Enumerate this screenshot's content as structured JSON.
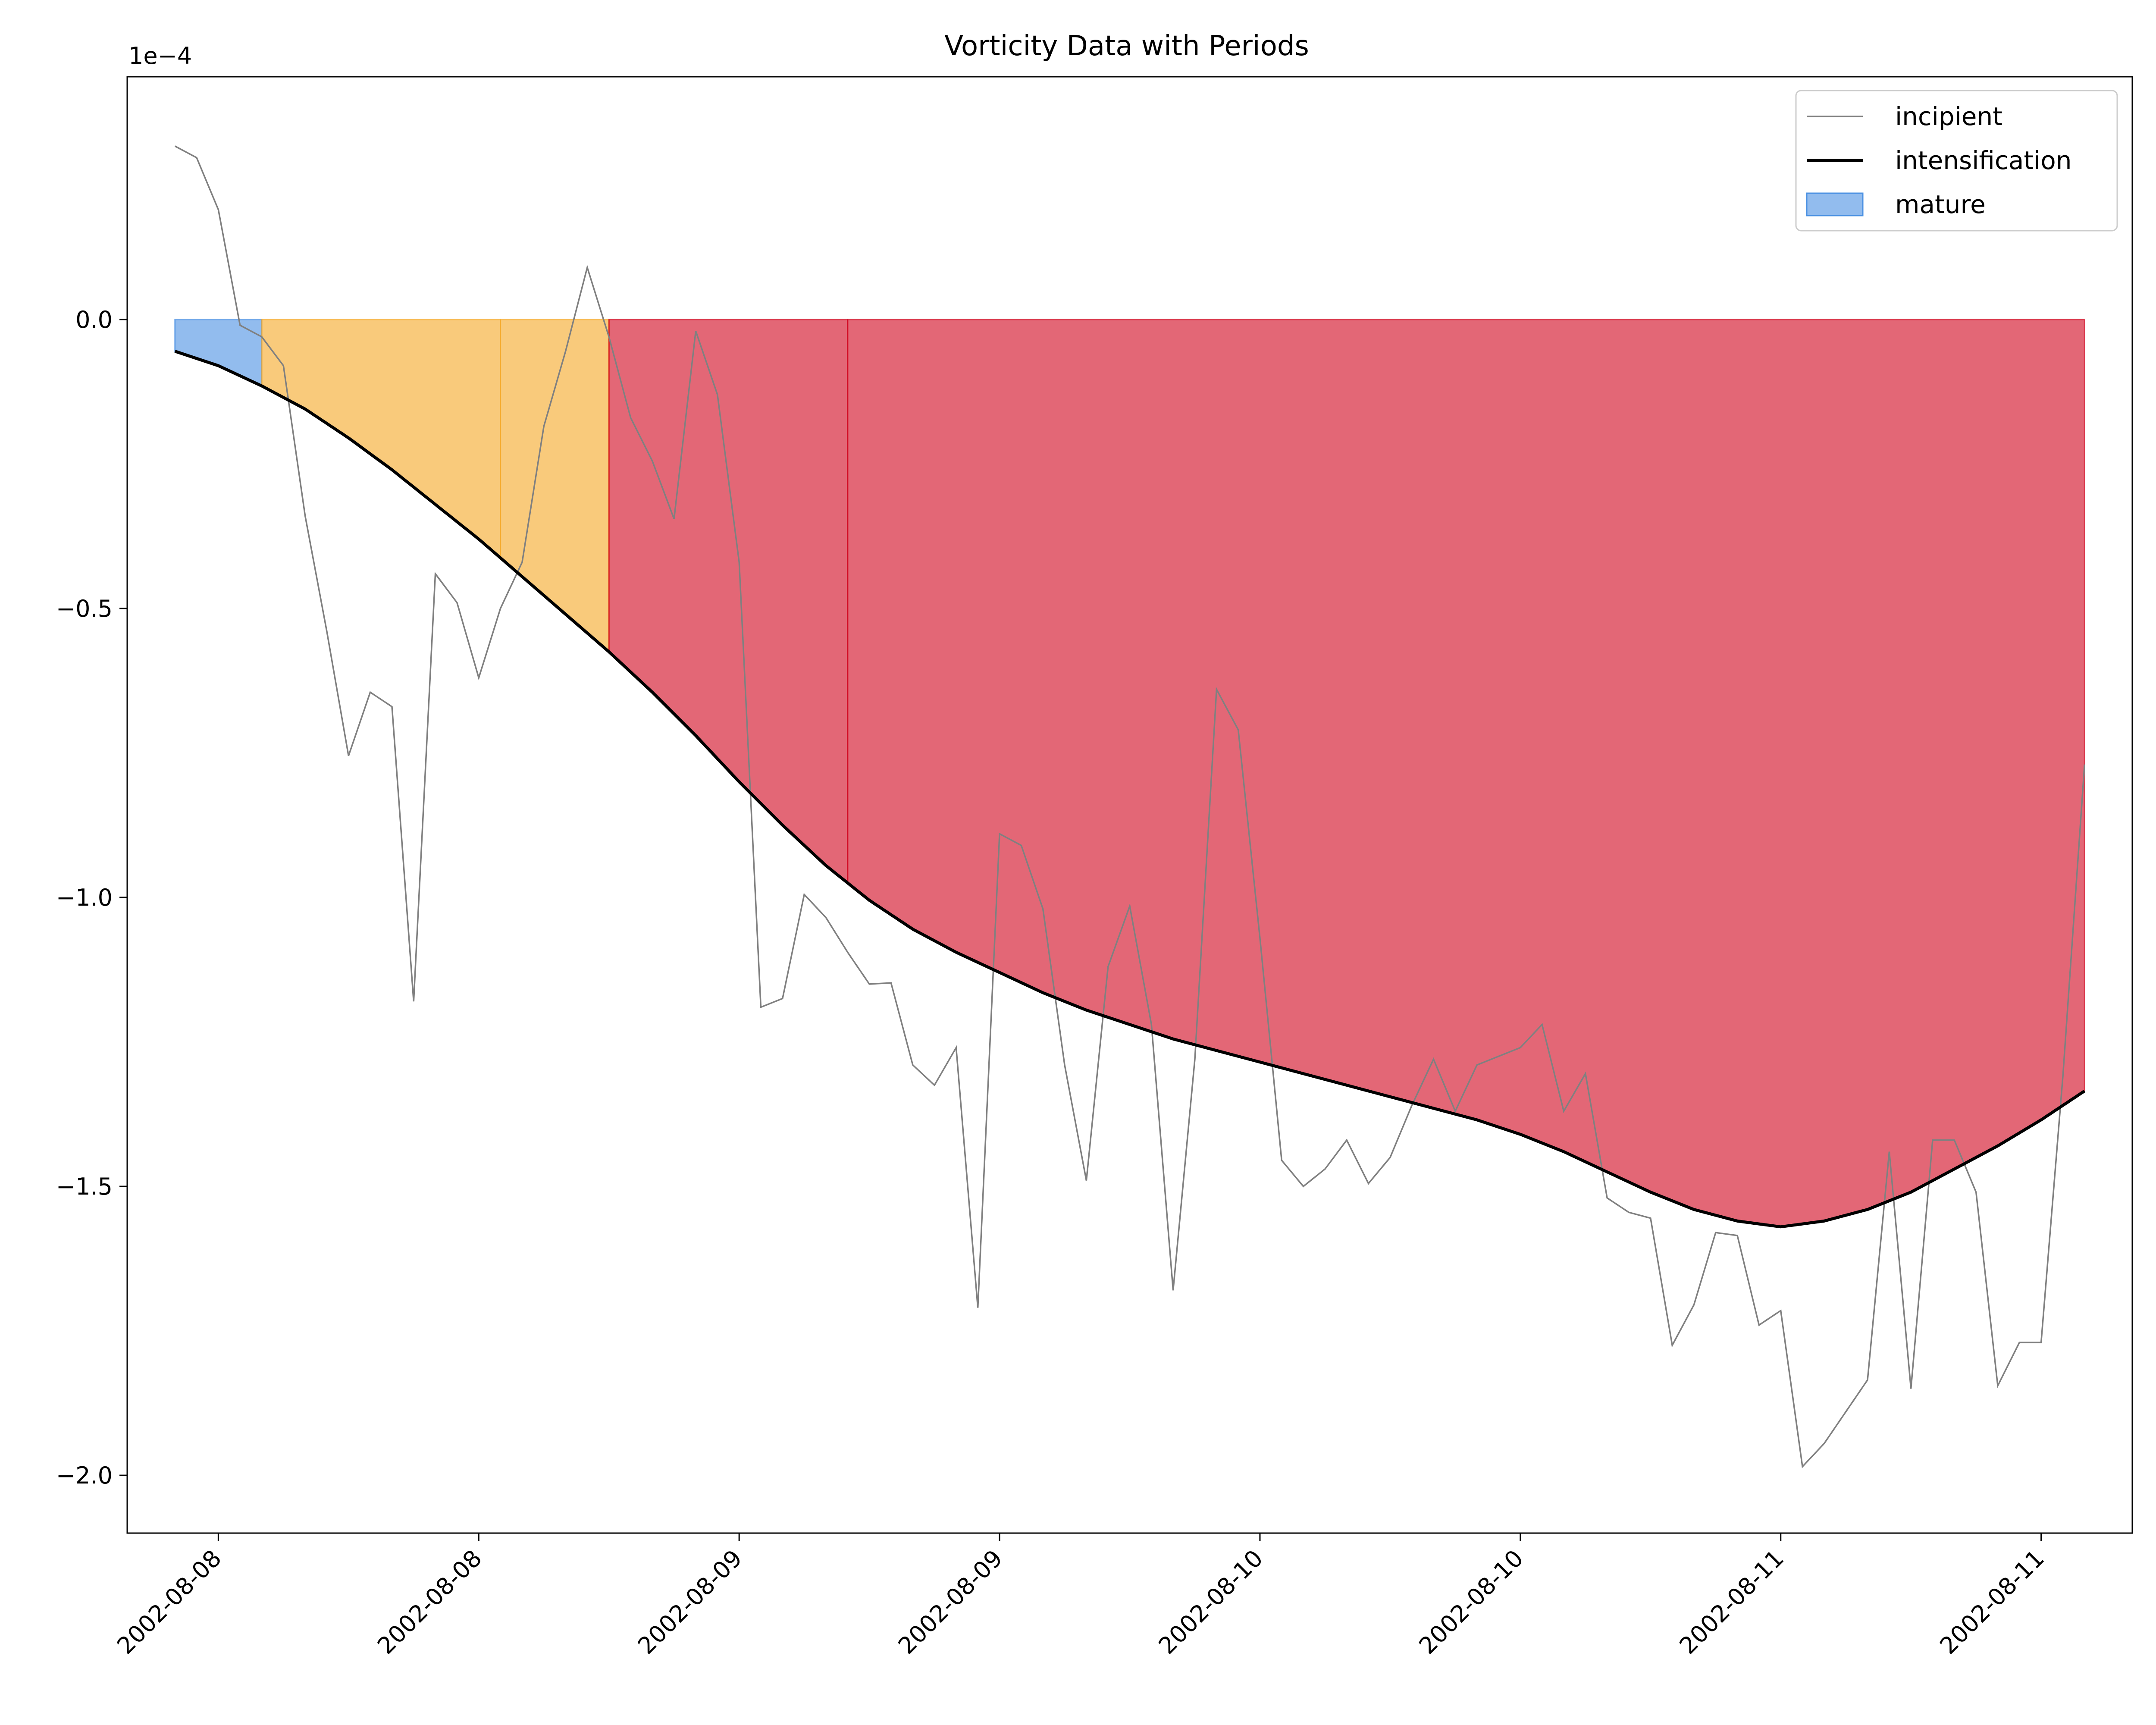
{
  "chart_data": {
    "type": "line",
    "title": "Vorticity Data with Periods",
    "xlabel": "",
    "ylabel": "",
    "offset_label": "1e−4",
    "xlim": [
      -2.2,
      90.2
    ],
    "ylim": [
      -2.1,
      0.42
    ],
    "x_ticks": [
      {
        "x": 2,
        "label": "2002-08-08"
      },
      {
        "x": 14,
        "label": "2002-08-08"
      },
      {
        "x": 26,
        "label": "2002-08-09"
      },
      {
        "x": 38,
        "label": "2002-08-09"
      },
      {
        "x": 50,
        "label": "2002-08-10"
      },
      {
        "x": 62,
        "label": "2002-08-10"
      },
      {
        "x": 74,
        "label": "2002-08-11"
      },
      {
        "x": 86,
        "label": "2002-08-11"
      }
    ],
    "y_ticks": [
      {
        "y": 0.0,
        "label": "0.0"
      },
      {
        "y": -0.5,
        "label": "−0.5"
      },
      {
        "y": -1.0,
        "label": "−1.0"
      },
      {
        "y": -1.5,
        "label": "−1.5"
      },
      {
        "y": -2.0,
        "label": "−2.0"
      }
    ],
    "legend_position": "top-right",
    "legend": [
      {
        "label": "incipient",
        "kind": "line-thin",
        "color": "#808080"
      },
      {
        "label": "intensification",
        "kind": "line-thick",
        "color": "#000000"
      },
      {
        "label": "mature",
        "kind": "patch",
        "color": "#4a90e2"
      }
    ],
    "periods": [
      {
        "x_start": 0,
        "x_end": 4,
        "color": "#4a90e2",
        "opacity": 0.6
      },
      {
        "x_start": 4,
        "x_end": 15,
        "color": "#f5a623",
        "opacity": 0.6
      },
      {
        "x_start": 15,
        "x_end": 20,
        "color": "#f5a623",
        "opacity": 0.6
      },
      {
        "x_start": 20,
        "x_end": 31,
        "color": "#d0021b",
        "opacity": 0.6
      },
      {
        "x_start": 31,
        "x_end": 88,
        "color": "#d0021b",
        "opacity": 0.6
      }
    ],
    "series": [
      {
        "name": "incipient",
        "color": "#808080",
        "x": [
          0,
          1,
          2,
          3,
          4,
          5,
          6,
          7,
          8,
          9,
          10,
          11,
          12,
          13,
          14,
          15,
          16,
          17,
          18,
          19,
          20,
          21,
          22,
          23,
          24,
          25,
          26,
          27,
          28,
          29,
          30,
          31,
          32,
          33,
          34,
          35,
          36,
          37,
          38,
          39,
          40,
          41,
          42,
          43,
          44,
          45,
          46,
          47,
          48,
          49,
          50,
          51,
          52,
          53,
          54,
          55,
          56,
          57,
          58,
          59,
          60,
          61,
          62,
          63,
          64,
          65,
          66,
          67,
          68,
          69,
          70,
          71,
          72,
          73,
          74,
          75,
          76,
          77,
          78,
          79,
          80,
          81,
          82,
          83,
          84,
          85,
          86,
          87,
          88
        ],
        "values": [
          0.3,
          0.28,
          0.19,
          -0.01,
          -0.03,
          -0.08,
          -0.34,
          -0.54,
          -0.755,
          -0.645,
          -0.67,
          -1.18,
          -0.44,
          -0.49,
          -0.62,
          -0.5,
          -0.42,
          -0.185,
          -0.055,
          0.09,
          -0.03,
          -0.17,
          -0.245,
          -0.345,
          -0.02,
          -0.13,
          -0.42,
          -1.19,
          -1.175,
          -0.995,
          -1.035,
          -1.095,
          -1.15,
          -1.148,
          -1.29,
          -1.325,
          -1.26,
          -1.71,
          -0.89,
          -0.91,
          -1.02,
          -1.29,
          -1.49,
          -1.12,
          -1.015,
          -1.22,
          -1.68,
          -1.28,
          -0.64,
          -0.71,
          -1.07,
          -1.455,
          -1.5,
          -1.47,
          -1.42,
          -1.495,
          -1.45,
          -1.36,
          -1.28,
          -1.37,
          -1.29,
          -1.275,
          -1.26,
          -1.22,
          -1.37,
          -1.305,
          -1.52,
          -1.545,
          -1.555,
          -1.775,
          -1.705,
          -1.58,
          -1.585,
          -1.74,
          -1.715,
          -1.985,
          -1.945,
          -1.89,
          -1.835,
          -1.44,
          -1.85,
          -1.42,
          -1.42,
          -1.51,
          -1.845,
          -1.77,
          -1.77,
          -1.31,
          -0.77
        ]
      },
      {
        "name": "intensification",
        "color": "#000000",
        "x": [
          0,
          2,
          4,
          6,
          8,
          10,
          12,
          14,
          16,
          18,
          20,
          22,
          24,
          26,
          28,
          30,
          32,
          34,
          36,
          38,
          40,
          42,
          44,
          46,
          48,
          50,
          52,
          54,
          56,
          58,
          60,
          62,
          64,
          66,
          68,
          70,
          72,
          74,
          76,
          78,
          80,
          82,
          84,
          86,
          88
        ],
        "values": [
          -0.055,
          -0.08,
          -0.115,
          -0.155,
          -0.205,
          -0.26,
          -0.32,
          -0.38,
          -0.445,
          -0.51,
          -0.575,
          -0.645,
          -0.72,
          -0.8,
          -0.875,
          -0.945,
          -1.005,
          -1.055,
          -1.095,
          -1.13,
          -1.165,
          -1.195,
          -1.22,
          -1.245,
          -1.265,
          -1.285,
          -1.305,
          -1.325,
          -1.345,
          -1.365,
          -1.385,
          -1.41,
          -1.44,
          -1.475,
          -1.51,
          -1.54,
          -1.56,
          -1.57,
          -1.56,
          -1.54,
          -1.51,
          -1.47,
          -1.43,
          -1.385,
          -1.335
        ]
      }
    ]
  }
}
